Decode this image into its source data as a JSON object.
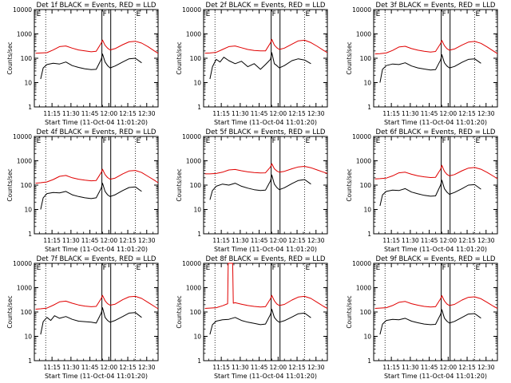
{
  "figure": {
    "background": "#ffffff",
    "events_color": "#000000",
    "lld_color": "#e00000",
    "xlabel": "Start Time (11-Oct-04 11:01:20)",
    "ylabel": "Counts/sec",
    "xticks": [
      {
        "label": "11:15",
        "x": 14
      },
      {
        "label": "11:30",
        "x": 29
      },
      {
        "label": "11:45",
        "x": 44
      },
      {
        "label": "12:00",
        "x": 59
      },
      {
        "label": "12:15",
        "x": 74
      },
      {
        "label": "12:30",
        "x": 89
      }
    ],
    "xlim": [
      0,
      98
    ],
    "ylim": [
      1,
      10000
    ],
    "yscale": "log",
    "yticks": [
      "1",
      "10",
      "100",
      "1000",
      "10000"
    ],
    "markers": [
      {
        "label": "E",
        "x": 1
      },
      {
        "label": "F",
        "x": 53.5
      },
      {
        "label": "E",
        "x": 80
      }
    ],
    "dotted_lines_x": [
      9,
      80
    ],
    "solid_lines_x": [
      53.5,
      60.5
    ]
  },
  "chart_data": [
    {
      "type": "line",
      "title": "Det 1f BLACK = Events, RED = LLD",
      "x": [
        1,
        5,
        10,
        15,
        20,
        25,
        30,
        35,
        40,
        45,
        49,
        53,
        54,
        56,
        58,
        60,
        64,
        70,
        75,
        80,
        85,
        90,
        95,
        98
      ],
      "series": [
        {
          "name": "Events",
          "color": "#000000",
          "x": [
            5,
            7,
            10,
            15,
            20,
            25,
            30,
            35,
            40,
            45,
            49,
            53,
            54,
            56,
            58,
            60,
            64,
            70,
            75,
            80,
            85
          ],
          "values": [
            14,
            40,
            55,
            62,
            58,
            70,
            50,
            42,
            37,
            34,
            35,
            90,
            150,
            70,
            50,
            40,
            48,
            70,
            95,
            100,
            65
          ]
        },
        {
          "name": "LLD",
          "color": "#e00000",
          "x": [
            1,
            5,
            10,
            15,
            20,
            25,
            30,
            35,
            40,
            45,
            49,
            53,
            54,
            56,
            58,
            60,
            64,
            70,
            75,
            80,
            85,
            90,
            95,
            98
          ],
          "values": [
            160,
            165,
            170,
            220,
            300,
            320,
            260,
            220,
            200,
            185,
            195,
            420,
            560,
            340,
            260,
            220,
            250,
            360,
            470,
            500,
            420,
            300,
            200,
            160
          ]
        }
      ]
    },
    {
      "type": "line",
      "title": "Det 2f BLACK = Events, RED = LLD",
      "series": [
        {
          "name": "Events",
          "color": "#000000",
          "x": [
            5,
            7,
            10,
            13,
            16,
            20,
            25,
            30,
            35,
            40,
            45,
            49,
            53,
            54,
            56,
            58,
            60,
            64,
            70,
            75,
            80,
            85
          ],
          "values": [
            14,
            45,
            90,
            70,
            110,
            80,
            60,
            75,
            45,
            60,
            35,
            55,
            90,
            170,
            60,
            50,
            40,
            50,
            80,
            95,
            85,
            60
          ]
        },
        {
          "name": "LLD",
          "color": "#e00000",
          "x": [
            1,
            5,
            10,
            15,
            20,
            25,
            30,
            35,
            40,
            45,
            49,
            53,
            54,
            56,
            58,
            60,
            64,
            70,
            75,
            80,
            85,
            90,
            95,
            98
          ],
          "values": [
            160,
            165,
            175,
            230,
            300,
            320,
            270,
            230,
            210,
            200,
            200,
            430,
            600,
            350,
            270,
            230,
            260,
            380,
            520,
            550,
            440,
            310,
            210,
            170
          ]
        }
      ]
    },
    {
      "type": "line",
      "title": "Det 3f BLACK = Events, RED = LLD",
      "series": [
        {
          "name": "Events",
          "color": "#000000",
          "x": [
            5,
            7,
            10,
            15,
            20,
            25,
            30,
            35,
            40,
            45,
            49,
            53,
            54,
            56,
            58,
            60,
            64,
            70,
            75,
            80,
            85
          ],
          "values": [
            10,
            35,
            50,
            58,
            55,
            65,
            48,
            40,
            36,
            33,
            34,
            85,
            140,
            65,
            48,
            40,
            46,
            68,
            90,
            95,
            62
          ]
        },
        {
          "name": "LLD",
          "color": "#e00000",
          "x": [
            1,
            5,
            10,
            15,
            20,
            25,
            30,
            35,
            40,
            45,
            49,
            53,
            54,
            56,
            58,
            60,
            64,
            70,
            75,
            80,
            85,
            90,
            95,
            98
          ],
          "values": [
            150,
            155,
            165,
            210,
            290,
            310,
            250,
            215,
            195,
            180,
            190,
            400,
            540,
            330,
            250,
            215,
            240,
            350,
            460,
            490,
            410,
            290,
            195,
            155
          ]
        }
      ]
    },
    {
      "type": "line",
      "title": "Det 4f BLACK = Events, RED = LLD",
      "series": [
        {
          "name": "Events",
          "color": "#000000",
          "x": [
            5,
            7,
            10,
            15,
            20,
            25,
            30,
            35,
            40,
            45,
            49,
            53,
            54,
            56,
            58,
            60,
            64,
            70,
            75,
            80,
            85
          ],
          "values": [
            10,
            30,
            45,
            50,
            48,
            55,
            40,
            34,
            30,
            28,
            30,
            75,
            120,
            55,
            40,
            34,
            40,
            60,
            80,
            85,
            55
          ]
        },
        {
          "name": "LLD",
          "color": "#e00000",
          "x": [
            1,
            5,
            10,
            15,
            20,
            25,
            30,
            35,
            40,
            45,
            49,
            53,
            54,
            56,
            58,
            60,
            64,
            70,
            75,
            80,
            85,
            90,
            95,
            98
          ],
          "values": [
            120,
            125,
            135,
            170,
            230,
            250,
            200,
            175,
            160,
            150,
            155,
            330,
            450,
            270,
            205,
            175,
            195,
            290,
            380,
            400,
            330,
            230,
            160,
            125
          ]
        }
      ]
    },
    {
      "type": "line",
      "title": "Det 5f BLACK = Events, RED = LLD",
      "series": [
        {
          "name": "Events",
          "color": "#000000",
          "x": [
            5,
            7,
            10,
            15,
            20,
            25,
            30,
            35,
            40,
            45,
            49,
            53,
            54,
            56,
            58,
            60,
            64,
            70,
            75,
            80,
            85
          ],
          "values": [
            25,
            60,
            90,
            110,
            100,
            120,
            90,
            75,
            65,
            60,
            62,
            150,
            260,
            110,
            80,
            65,
            78,
            115,
            155,
            170,
            110
          ]
        },
        {
          "name": "LLD",
          "color": "#e00000",
          "x": [
            1,
            5,
            10,
            15,
            20,
            25,
            30,
            35,
            40,
            45,
            49,
            53,
            54,
            56,
            58,
            60,
            64,
            70,
            75,
            80,
            85,
            90,
            95,
            98
          ],
          "values": [
            290,
            290,
            300,
            340,
            420,
            440,
            390,
            350,
            330,
            315,
            320,
            560,
            760,
            470,
            380,
            340,
            370,
            470,
            560,
            590,
            520,
            420,
            340,
            300
          ]
        }
      ]
    },
    {
      "type": "line",
      "title": "Det 6f BLACK = Events, RED = LLD",
      "series": [
        {
          "name": "Events",
          "color": "#000000",
          "x": [
            5,
            7,
            10,
            15,
            20,
            25,
            30,
            35,
            40,
            45,
            49,
            53,
            54,
            56,
            58,
            60,
            64,
            70,
            75,
            80,
            85
          ],
          "values": [
            14,
            40,
            55,
            62,
            60,
            72,
            52,
            44,
            38,
            35,
            36,
            100,
            160,
            72,
            52,
            42,
            50,
            72,
            100,
            105,
            68
          ]
        },
        {
          "name": "LLD",
          "color": "#e00000",
          "x": [
            1,
            5,
            10,
            15,
            20,
            25,
            30,
            35,
            40,
            45,
            49,
            53,
            54,
            56,
            58,
            60,
            64,
            70,
            75,
            80,
            85,
            90,
            95,
            98
          ],
          "values": [
            180,
            185,
            195,
            240,
            320,
            340,
            280,
            240,
            220,
            205,
            210,
            450,
            650,
            370,
            280,
            240,
            270,
            390,
            500,
            530,
            450,
            330,
            230,
            185
          ]
        }
      ]
    },
    {
      "type": "line",
      "title": "Det 7f BLACK = Events, RED = LLD",
      "series": [
        {
          "name": "Events",
          "color": "#000000",
          "x": [
            5,
            7,
            10,
            13,
            16,
            20,
            25,
            30,
            35,
            40,
            45,
            49,
            53,
            54,
            56,
            58,
            60,
            64,
            70,
            75,
            80,
            85
          ],
          "values": [
            12,
            40,
            60,
            45,
            70,
            55,
            65,
            50,
            42,
            40,
            38,
            35,
            90,
            150,
            60,
            45,
            38,
            45,
            65,
            90,
            95,
            60
          ]
        },
        {
          "name": "LLD",
          "color": "#e00000",
          "x": [
            1,
            5,
            10,
            15,
            20,
            25,
            30,
            35,
            40,
            45,
            49,
            53,
            54,
            56,
            58,
            60,
            64,
            70,
            75,
            80,
            85,
            90,
            95,
            98
          ],
          "values": [
            130,
            135,
            145,
            190,
            260,
            280,
            230,
            195,
            175,
            165,
            170,
            360,
            480,
            290,
            220,
            190,
            210,
            320,
            420,
            440,
            360,
            250,
            170,
            135
          ]
        }
      ]
    },
    {
      "type": "line",
      "title": "Det 8f BLACK = Events, RED = LLD",
      "series": [
        {
          "name": "Events",
          "color": "#000000",
          "x": [
            5,
            7,
            10,
            15,
            20,
            25,
            30,
            35,
            40,
            45,
            49,
            53,
            54,
            56,
            58,
            60,
            64,
            70,
            75,
            80,
            85
          ],
          "values": [
            12,
            30,
            42,
            48,
            50,
            60,
            45,
            38,
            34,
            30,
            32,
            80,
            130,
            60,
            45,
            38,
            44,
            62,
            85,
            90,
            58
          ]
        },
        {
          "name": "LLD",
          "color": "#e00000",
          "x": [
            1,
            5,
            10,
            15,
            19,
            19.5,
            23,
            23.5,
            25,
            30,
            35,
            40,
            45,
            49,
            53,
            54,
            56,
            58,
            60,
            64,
            70,
            75,
            80,
            85,
            90,
            95,
            98
          ],
          "values": [
            140,
            145,
            150,
            180,
            220,
            10000,
            10000,
            230,
            240,
            210,
            185,
            170,
            160,
            165,
            350,
            480,
            290,
            215,
            185,
            205,
            310,
            410,
            440,
            360,
            250,
            170,
            140
          ]
        }
      ]
    },
    {
      "type": "line",
      "title": "Det 9f BLACK = Events, RED = LLD",
      "series": [
        {
          "name": "Events",
          "color": "#000000",
          "x": [
            5,
            7,
            10,
            15,
            20,
            25,
            30,
            35,
            40,
            45,
            49,
            53,
            54,
            56,
            58,
            60,
            64,
            70,
            75,
            80,
            85
          ],
          "values": [
            12,
            32,
            45,
            50,
            48,
            55,
            42,
            36,
            32,
            30,
            31,
            80,
            125,
            56,
            42,
            35,
            41,
            60,
            82,
            86,
            56
          ]
        },
        {
          "name": "LLD",
          "color": "#e00000",
          "x": [
            1,
            5,
            10,
            15,
            20,
            25,
            30,
            35,
            40,
            45,
            49,
            53,
            54,
            56,
            58,
            60,
            64,
            70,
            75,
            80,
            85,
            90,
            95,
            98
          ],
          "values": [
            140,
            145,
            150,
            185,
            250,
            270,
            220,
            190,
            170,
            160,
            165,
            350,
            470,
            285,
            215,
            185,
            205,
            310,
            400,
            420,
            350,
            245,
            170,
            140
          ]
        }
      ]
    }
  ]
}
